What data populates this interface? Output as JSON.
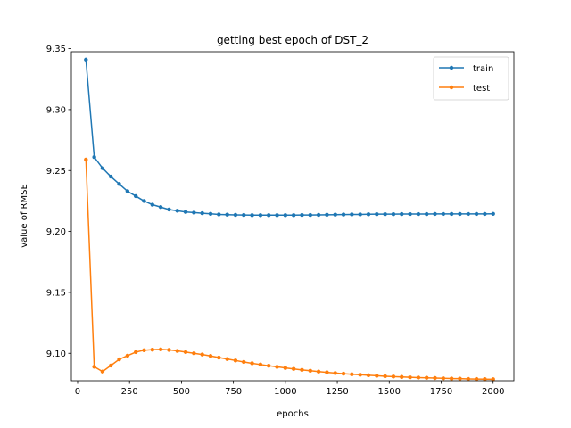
{
  "chart_data": {
    "type": "line",
    "title": "getting best epoch of DST_2",
    "xlabel": "epochs",
    "ylabel": "value of RMSE",
    "xlim": [
      -30,
      2100
    ],
    "ylim": [
      9.0775,
      9.3475
    ],
    "x_ticks": [
      0,
      250,
      500,
      750,
      1000,
      1250,
      1500,
      1750,
      2000
    ],
    "y_ticks": [
      9.1,
      9.15,
      9.2,
      9.25,
      9.3,
      9.35
    ],
    "x_tick_labels": [
      "0",
      "250",
      "500",
      "750",
      "1000",
      "1250",
      "1500",
      "1750",
      "2000"
    ],
    "y_tick_labels": [
      "9.10",
      "9.15",
      "9.20",
      "9.25",
      "9.30",
      "9.35"
    ],
    "grid": false,
    "legend_position": "upper right",
    "x": [
      40,
      80,
      120,
      160,
      200,
      240,
      280,
      320,
      360,
      400,
      440,
      480,
      520,
      560,
      600,
      640,
      680,
      720,
      760,
      800,
      840,
      880,
      920,
      960,
      1000,
      1040,
      1080,
      1120,
      1160,
      1200,
      1240,
      1280,
      1320,
      1360,
      1400,
      1440,
      1480,
      1520,
      1560,
      1600,
      1640,
      1680,
      1720,
      1760,
      1800,
      1840,
      1880,
      1920,
      1960,
      2000
    ],
    "series": [
      {
        "name": "train",
        "color": "#1f77b4",
        "marker": "circle",
        "values": [
          9.341,
          9.261,
          9.252,
          9.245,
          9.239,
          9.233,
          9.229,
          9.225,
          9.222,
          9.22,
          9.218,
          9.217,
          9.216,
          9.2155,
          9.215,
          9.2145,
          9.214,
          9.2138,
          9.2136,
          9.2135,
          9.2134,
          9.2134,
          9.2134,
          9.2134,
          9.2134,
          9.2134,
          9.2135,
          9.2135,
          9.2136,
          9.2137,
          9.2138,
          9.2139,
          9.214,
          9.214,
          9.2141,
          9.2142,
          9.2142,
          9.2142,
          9.2143,
          9.2143,
          9.2143,
          9.2143,
          9.2144,
          9.2144,
          9.2144,
          9.2144,
          9.2144,
          9.2144,
          9.2144,
          9.2145
        ]
      },
      {
        "name": "test",
        "color": "#ff7f0e",
        "marker": "circle",
        "values": [
          9.259,
          9.089,
          9.085,
          9.09,
          9.095,
          9.098,
          9.101,
          9.1025,
          9.103,
          9.1032,
          9.1028,
          9.102,
          9.101,
          9.1,
          9.099,
          9.0978,
          9.0965,
          9.0953,
          9.0941,
          9.0929,
          9.0918,
          9.0908,
          9.0898,
          9.0889,
          9.088,
          9.0872,
          9.0864,
          9.0857,
          9.085,
          9.0844,
          9.0838,
          9.0833,
          9.0828,
          9.0824,
          9.082,
          9.0816,
          9.0812,
          9.0809,
          9.0806,
          9.0803,
          9.0801,
          9.0799,
          9.0797,
          9.0795,
          9.0793,
          9.0792,
          9.079,
          9.0789,
          9.0788,
          9.0787
        ]
      }
    ]
  }
}
